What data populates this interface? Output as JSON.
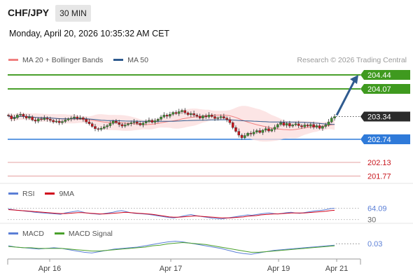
{
  "header": {
    "pair": "CHF/JPY",
    "timeframe": "30 MIN",
    "timestamp": "Monday, April 20, 2026 10:35:32 AM CET"
  },
  "legend_main": {
    "items": [
      {
        "label": "MA 20 + Bollinger Bands",
        "color": "#f08080"
      },
      {
        "label": "MA 50",
        "color": "#2f5b8f"
      }
    ],
    "credit": "Research © 2026 Trading Central"
  },
  "legend_rsi": {
    "items": [
      {
        "label": "RSI",
        "color": "#5b7fd6"
      },
      {
        "label": "9MA",
        "color": "#d0021b"
      }
    ]
  },
  "legend_macd": {
    "items": [
      {
        "label": "MACD",
        "color": "#5b7fd6"
      },
      {
        "label": "MACD Signal",
        "color": "#4aa02c"
      }
    ]
  },
  "x_axis": {
    "labels": [
      "Apr 16",
      "Apr 17",
      "Apr 19",
      "Apr 21"
    ]
  },
  "levels": [
    {
      "label": "204.44",
      "value": 204.44,
      "kind": "resistance",
      "color": "#4aa02c"
    },
    {
      "label": "204.07",
      "value": 204.07,
      "kind": "resistance",
      "color": "#4aa02c"
    },
    {
      "label": "203.34",
      "value": 203.34,
      "kind": "last",
      "color": "#2b2b2b"
    },
    {
      "label": "202.74",
      "value": 202.74,
      "kind": "pivot",
      "color": "#2f7ad9"
    },
    {
      "label": "202.13",
      "value": 202.13,
      "kind": "support",
      "color": "#d0021b"
    },
    {
      "label": "201.77",
      "value": 201.77,
      "kind": "support",
      "color": "#d0021b"
    }
  ],
  "rsi_levels": {
    "labels": [
      "64.09",
      "30"
    ]
  },
  "macd_levels": {
    "labels": [
      "0.03"
    ]
  },
  "chart_data": [
    {
      "type": "candlestick",
      "title": "CHF/JPY 30 MIN",
      "ylim": [
        201.6,
        204.6
      ],
      "x_labels": [
        "Apr 16",
        "Apr 17",
        "Apr 19",
        "Apr 21"
      ],
      "close": [
        203.36,
        203.28,
        203.31,
        203.38,
        203.4,
        203.35,
        203.3,
        203.33,
        203.25,
        203.22,
        203.28,
        203.26,
        203.3,
        203.27,
        203.24,
        203.2,
        203.22,
        203.18,
        203.21,
        203.25,
        203.28,
        203.3,
        203.33,
        203.29,
        203.31,
        203.27,
        203.2,
        203.15,
        203.08,
        203.02,
        203.0,
        203.03,
        203.07,
        203.1,
        203.16,
        203.22,
        203.18,
        203.13,
        203.09,
        203.12,
        203.15,
        203.18,
        203.2,
        203.16,
        203.12,
        203.17,
        203.21,
        203.24,
        203.19,
        203.23,
        203.27,
        203.33,
        203.38,
        203.35,
        203.4,
        203.45,
        203.42,
        203.47,
        203.5,
        203.44,
        203.39,
        203.42,
        203.38,
        203.35,
        203.3,
        203.36,
        203.33,
        203.38,
        203.34,
        203.29,
        203.31,
        203.34,
        203.3,
        203.26,
        203.18,
        203.05,
        202.95,
        202.85,
        202.78,
        202.84,
        202.9,
        202.88,
        202.93,
        202.97,
        202.92,
        202.98,
        203.02,
        202.96,
        203.0,
        203.06,
        203.13,
        203.18,
        203.11,
        203.16,
        203.09,
        203.12,
        203.15,
        203.1,
        203.07,
        203.12,
        203.09,
        203.13,
        203.06,
        203.1,
        203.03,
        203.08,
        203.12,
        203.2,
        203.3,
        203.34
      ],
      "ma20_bollinger": {
        "label": "MA 20 + Bollinger Bands"
      },
      "ma50": {
        "label": "MA 50"
      },
      "forecast_target": 204.44
    },
    {
      "type": "line",
      "title": "RSI",
      "series": [
        {
          "name": "RSI",
          "values": [
            62,
            60,
            58,
            57,
            55,
            54,
            52,
            51,
            50,
            49,
            48,
            47,
            46,
            50,
            52,
            54,
            56,
            53,
            50,
            48,
            47,
            46,
            48,
            50,
            52,
            55,
            57,
            54,
            51,
            49,
            48,
            47,
            46,
            44,
            42,
            40,
            38,
            36,
            35,
            37,
            40,
            43,
            45,
            42,
            40,
            38,
            36,
            34,
            33,
            32,
            34,
            36,
            38,
            40,
            42,
            44,
            43,
            45,
            47,
            49,
            50,
            48,
            47,
            49,
            51,
            52,
            50,
            49,
            51,
            53,
            55,
            57,
            58,
            60,
            63,
            64.09
          ]
        },
        {
          "name": "9MA",
          "values": [
            60,
            59,
            58,
            57,
            56,
            55,
            54,
            53,
            52,
            51,
            50,
            49,
            48,
            48,
            49,
            50,
            51,
            51,
            50,
            49,
            48,
            47,
            47,
            48,
            49,
            50,
            51,
            52,
            51,
            50,
            49,
            48,
            47,
            46,
            44,
            42,
            40,
            38,
            37,
            37,
            38,
            39,
            40,
            41,
            40,
            39,
            38,
            37,
            36,
            35,
            35,
            35,
            36,
            37,
            38,
            40,
            41,
            42,
            44,
            45,
            46,
            47,
            47,
            48,
            49,
            50,
            50,
            50,
            50,
            51,
            52,
            53,
            54,
            55,
            57,
            58
          ]
        }
      ],
      "levels": [
        64.09,
        30
      ]
    },
    {
      "type": "line",
      "title": "MACD",
      "series": [
        {
          "name": "MACD",
          "values": [
            0.02,
            0.0,
            -0.01,
            -0.02,
            -0.03,
            -0.02,
            -0.01,
            -0.02,
            -0.04,
            -0.06,
            -0.08,
            -0.09,
            -0.07,
            -0.05,
            -0.03,
            -0.02,
            -0.01,
            0.0,
            0.02,
            0.04,
            0.06,
            0.08,
            0.09,
            0.08,
            0.06,
            0.04,
            0.02,
            0.0,
            -0.02,
            -0.05,
            -0.08,
            -0.1,
            -0.11,
            -0.09,
            -0.07,
            -0.05,
            -0.04,
            -0.03,
            -0.02,
            -0.01,
            0.0,
            0.01,
            0.02,
            0.03
          ]
        },
        {
          "name": "MACD Signal",
          "values": [
            0.01,
            0.0,
            -0.01,
            -0.01,
            -0.02,
            -0.02,
            -0.02,
            -0.02,
            -0.03,
            -0.04,
            -0.05,
            -0.06,
            -0.06,
            -0.05,
            -0.04,
            -0.03,
            -0.02,
            -0.01,
            0.0,
            0.02,
            0.03,
            0.05,
            0.06,
            0.07,
            0.06,
            0.05,
            0.04,
            0.02,
            0.0,
            -0.02,
            -0.04,
            -0.06,
            -0.08,
            -0.08,
            -0.07,
            -0.06,
            -0.05,
            -0.04,
            -0.03,
            -0.02,
            -0.01,
            0.0,
            0.01,
            0.02
          ]
        }
      ],
      "levels": [
        0.03
      ]
    }
  ]
}
